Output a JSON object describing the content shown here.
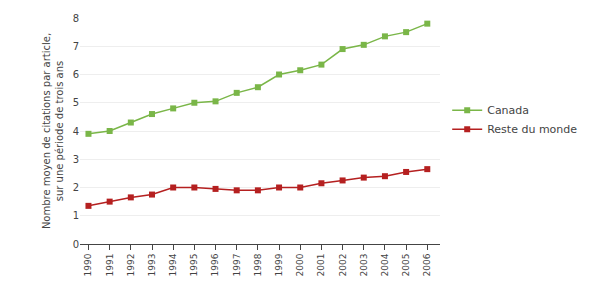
{
  "chart_data": {
    "type": "line",
    "x": [
      1990,
      1991,
      1992,
      1993,
      1994,
      1995,
      1996,
      1997,
      1998,
      1999,
      2000,
      2001,
      2002,
      2003,
      2004,
      2005,
      2006
    ],
    "series": [
      {
        "name": "Canada",
        "color": "#7ab648",
        "values": [
          3.9,
          4.0,
          4.3,
          4.6,
          4.8,
          5.0,
          5.05,
          5.35,
          5.55,
          6.0,
          6.15,
          6.35,
          6.9,
          7.05,
          7.35,
          7.5,
          7.8
        ]
      },
      {
        "name": "Reste du monde",
        "color": "#b52020",
        "values": [
          1.35,
          1.5,
          1.65,
          1.75,
          2.0,
          2.0,
          1.95,
          1.9,
          1.9,
          2.0,
          2.0,
          2.15,
          2.25,
          2.35,
          2.4,
          2.55,
          2.65
        ]
      }
    ],
    "ylabel": "Nombre moyen de citations par article,\nsur une période de trois ans",
    "xlim": [
      1989.6,
      2006.6
    ],
    "xticks": [
      1990,
      1991,
      1992,
      1993,
      1994,
      1995,
      1996,
      1997,
      1998,
      1999,
      2000,
      2001,
      2002,
      2003,
      2004,
      2005,
      2006
    ],
    "ylim": [
      0,
      8
    ],
    "yticks": [
      0,
      1,
      2,
      3,
      4,
      5,
      6,
      7,
      8
    ],
    "marker": "square",
    "grid": true,
    "legend": "right"
  }
}
